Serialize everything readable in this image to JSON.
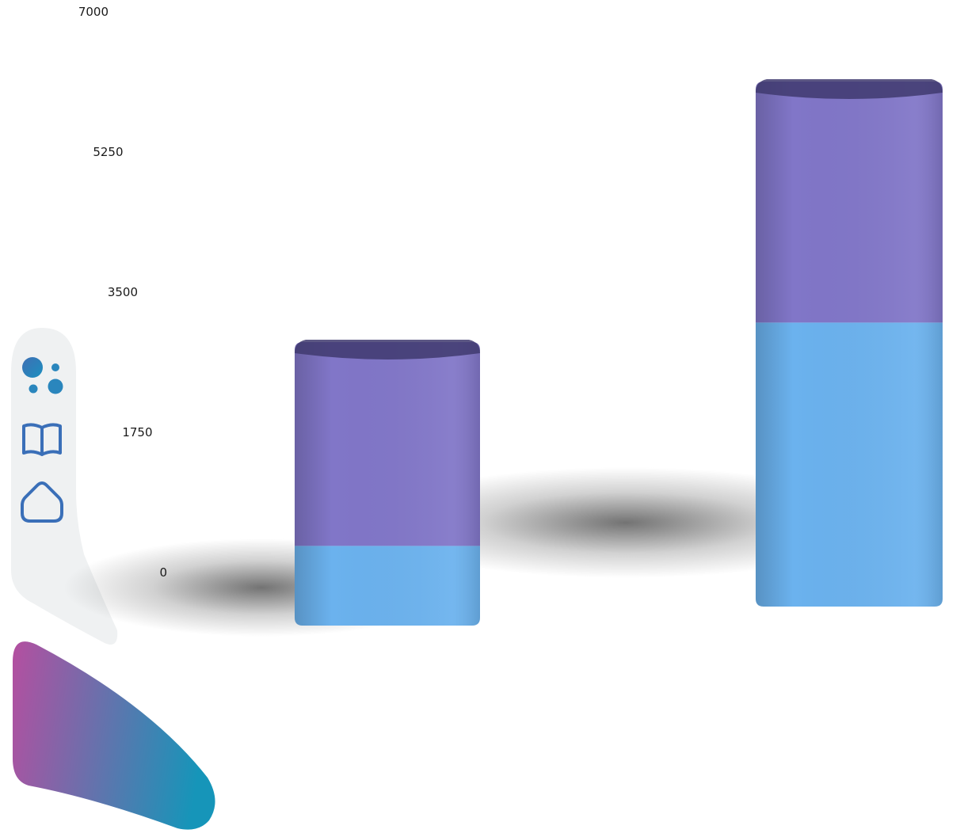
{
  "sidebar": {
    "items": [
      {
        "icon": "bubbles-icon"
      },
      {
        "icon": "book-icon"
      },
      {
        "icon": "home-icon"
      }
    ],
    "accent_gradient": [
      "#b44fa0",
      "#1695b9"
    ]
  },
  "chart_data": {
    "type": "bar",
    "stacked": true,
    "categories": [
      "",
      ""
    ],
    "yticks": [
      "0",
      "1750",
      "3500",
      "5250",
      "7000"
    ],
    "ylim": [
      0,
      7000
    ],
    "grid": false,
    "legend": "none",
    "series": [
      {
        "values": [
          900,
          3300
        ],
        "color": "#6bb2ee"
      },
      {
        "values": [
          2300,
          2800
        ],
        "color": "#8176c8"
      }
    ]
  }
}
